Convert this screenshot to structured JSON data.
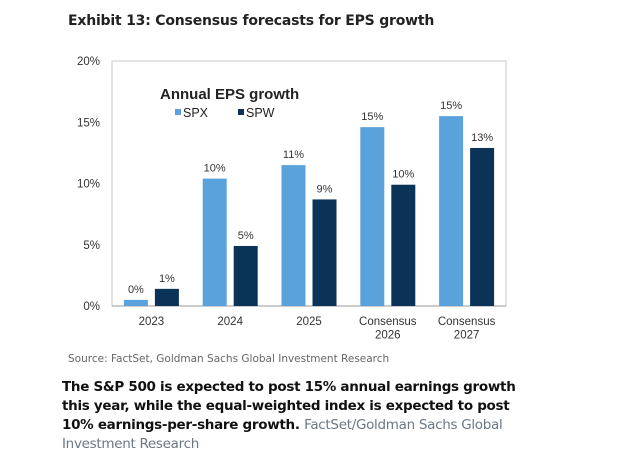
{
  "header": {
    "title": "Exhibit 13: Consensus forecasts for EPS growth"
  },
  "chart_data": {
    "type": "bar",
    "title": "Annual EPS growth",
    "xlabel": "",
    "ylabel": "",
    "ylim": [
      0,
      20
    ],
    "yticks": [
      "0%",
      "5%",
      "10%",
      "15%",
      "20%"
    ],
    "ytick_values": [
      0,
      5,
      10,
      15,
      20
    ],
    "categories": [
      [
        "2023"
      ],
      [
        "2024"
      ],
      [
        "2025"
      ],
      [
        "Consensus",
        "2026"
      ],
      [
        "Consensus",
        "2027"
      ]
    ],
    "legend_position": "top-left",
    "grid": false,
    "series": [
      {
        "name": "SPX",
        "color": "#5aa2dc",
        "values": [
          0.5,
          10.4,
          11.5,
          14.6,
          15.5
        ],
        "labels": [
          "0%",
          "10%",
          "11%",
          "15%",
          "15%"
        ]
      },
      {
        "name": "SPW",
        "color": "#0b3257",
        "values": [
          1.4,
          4.9,
          8.7,
          9.9,
          12.9
        ],
        "labels": [
          "1%",
          "5%",
          "9%",
          "10%",
          "13%"
        ]
      }
    ]
  },
  "footer": {
    "source": "Source: FactSet, Goldman Sachs Global Investment Research",
    "caption": "The S&P 500 is expected to post 15% annual earnings growth this year, while the equal-weighted index is expected to post 10% earnings-per-share growth.",
    "credit": "FactSet/Goldman Sachs Global Investment Research"
  }
}
